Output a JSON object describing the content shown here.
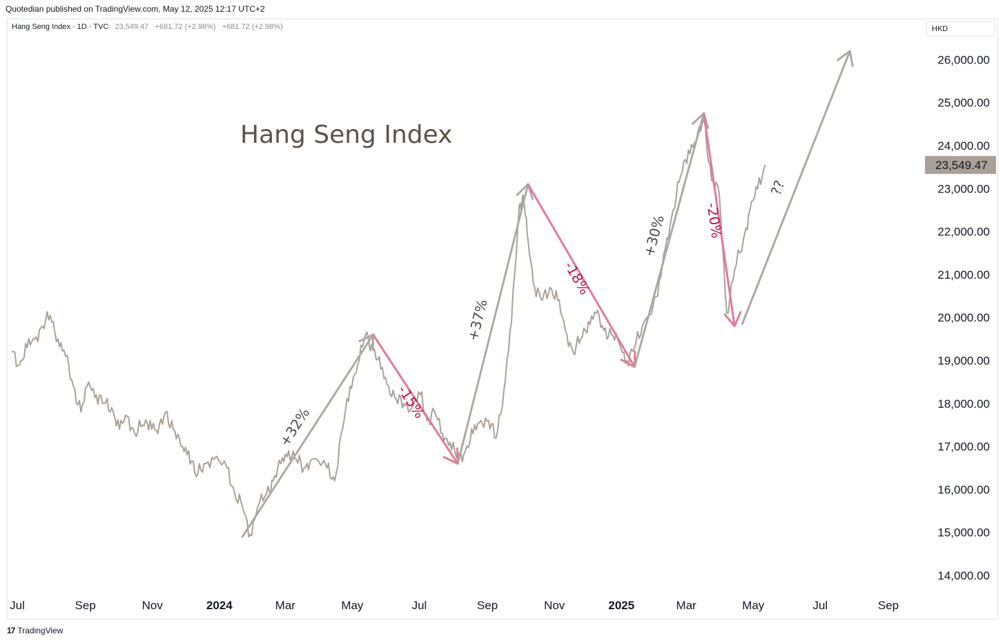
{
  "header": {
    "published": "Quotedian published on TradingView.com, May 12, 2025 12:17 UTC+2"
  },
  "legend": {
    "symbol": "Hang Seng Index · 1D · TVC",
    "last": "23,549.47",
    "change1": "+681.72 (+2.98%)",
    "change2": "+681.72 (+2.98%)"
  },
  "currency": "HKD",
  "footer": {
    "logo_mark": "17",
    "brand": "TradingView"
  },
  "colors": {
    "series": "#aaa097",
    "up_arrow": "#aea8a3",
    "down_arrow": "#e07a9a",
    "down_text": "#c0134a",
    "price_label_bg": "#aaa097"
  },
  "chart_data": {
    "type": "line",
    "title": "Hang Seng Index",
    "ylim": [
      13500,
      26800
    ],
    "y_ticks": [
      14000,
      15000,
      16000,
      17000,
      18000,
      19000,
      20000,
      21000,
      22000,
      23000,
      24000,
      25000,
      26000
    ],
    "y_tick_labels": [
      "14,000.00",
      "15,000.00",
      "16,000.00",
      "17,000.00",
      "18,000.00",
      "19,000.00",
      "20,000.00",
      "21,000.00",
      "22,000.00",
      "23,000.00",
      "24,000.00",
      "25,000.00",
      "26,000.00"
    ],
    "last_price_label": "23,549.47",
    "last_price": 23549.47,
    "x_ticks": [
      {
        "label": "Jul",
        "date": "2023-07-01",
        "bold": false
      },
      {
        "label": "Sep",
        "date": "2023-09-01",
        "bold": false
      },
      {
        "label": "Nov",
        "date": "2023-11-01",
        "bold": false
      },
      {
        "label": "2024",
        "date": "2024-01-01",
        "bold": true
      },
      {
        "label": "Mar",
        "date": "2024-03-01",
        "bold": false
      },
      {
        "label": "May",
        "date": "2024-05-01",
        "bold": false
      },
      {
        "label": "Jul",
        "date": "2024-07-01",
        "bold": false
      },
      {
        "label": "Sep",
        "date": "2024-09-01",
        "bold": false
      },
      {
        "label": "Nov",
        "date": "2024-11-01",
        "bold": false
      },
      {
        "label": "2025",
        "date": "2025-01-01",
        "bold": true
      },
      {
        "label": "Mar",
        "date": "2025-03-01",
        "bold": false
      },
      {
        "label": "May",
        "date": "2025-05-01",
        "bold": false
      },
      {
        "label": "Jul",
        "date": "2025-07-01",
        "bold": false
      },
      {
        "label": "Sep",
        "date": "2025-09-01",
        "bold": false
      }
    ],
    "series": [
      {
        "x": [
          "2023-06-26",
          "2023-07-03",
          "2023-07-10",
          "2023-07-17",
          "2023-07-24",
          "2023-07-31",
          "2023-08-07",
          "2023-08-14",
          "2023-08-21",
          "2023-08-28",
          "2023-09-04",
          "2023-09-11",
          "2023-09-18",
          "2023-09-25",
          "2023-10-02",
          "2023-10-09",
          "2023-10-16",
          "2023-10-23",
          "2023-10-30",
          "2023-11-06",
          "2023-11-13",
          "2023-11-20",
          "2023-11-27",
          "2023-12-04",
          "2023-12-11",
          "2023-12-18",
          "2023-12-27",
          "2024-01-08",
          "2024-01-15",
          "2024-01-22",
          "2024-01-29",
          "2024-02-05",
          "2024-02-13",
          "2024-02-19",
          "2024-02-26",
          "2024-03-04",
          "2024-03-11",
          "2024-03-18",
          "2024-03-25",
          "2024-04-08",
          "2024-04-15",
          "2024-04-22",
          "2024-04-29",
          "2024-05-06",
          "2024-05-13",
          "2024-05-20",
          "2024-05-27",
          "2024-06-03",
          "2024-06-10",
          "2024-06-17",
          "2024-06-24",
          "2024-07-02",
          "2024-07-08",
          "2024-07-15",
          "2024-07-22",
          "2024-07-29",
          "2024-08-05",
          "2024-08-12",
          "2024-08-19",
          "2024-08-26",
          "2024-09-02",
          "2024-09-09",
          "2024-09-16",
          "2024-09-23",
          "2024-09-30",
          "2024-10-04",
          "2024-10-08",
          "2024-10-14",
          "2024-10-21",
          "2024-10-28",
          "2024-11-04",
          "2024-11-11",
          "2024-11-18",
          "2024-11-25",
          "2024-12-02",
          "2024-12-09",
          "2024-12-16",
          "2024-12-23",
          "2024-12-30",
          "2025-01-06",
          "2025-01-13",
          "2025-01-20",
          "2025-02-03",
          "2025-02-10",
          "2025-02-17",
          "2025-02-24",
          "2025-03-03",
          "2025-03-10",
          "2025-03-17",
          "2025-03-24",
          "2025-03-31",
          "2025-04-07",
          "2025-04-14",
          "2025-04-22",
          "2025-04-28",
          "2025-05-05",
          "2025-05-12"
        ],
        "values": [
          19200,
          18900,
          19300,
          19500,
          19800,
          20050,
          19500,
          19100,
          18400,
          17800,
          18500,
          18200,
          18000,
          17900,
          17400,
          17700,
          17300,
          17500,
          17600,
          17300,
          17800,
          17400,
          17000,
          16900,
          16300,
          16600,
          16700,
          16500,
          15900,
          15600,
          14950,
          15600,
          15900,
          16200,
          16600,
          16900,
          16700,
          16500,
          16700,
          16500,
          16200,
          17400,
          18400,
          18900,
          19600,
          19300,
          18800,
          18400,
          18100,
          18000,
          17900,
          18200,
          17600,
          17800,
          17300,
          17100,
          16700,
          16900,
          17300,
          17600,
          17600,
          17200,
          18300,
          19900,
          22600,
          22750,
          21800,
          20700,
          20400,
          20700,
          20400,
          19700,
          19200,
          19500,
          19900,
          20100,
          19700,
          19600,
          19400,
          19000,
          19300,
          19800,
          20500,
          21600,
          22500,
          23300,
          23900,
          24100,
          24600,
          23200,
          22900,
          20100,
          21100,
          21800,
          22500,
          23000,
          23549.47
        ],
        "label": "Hang Seng Index"
      }
    ],
    "annotations": [
      {
        "kind": "up",
        "text": "+32%",
        "from": {
          "x": "2024-01-22",
          "y": 14900
        },
        "to": {
          "x": "2024-05-20",
          "y": 19600
        }
      },
      {
        "kind": "down",
        "text": "-15%",
        "from": {
          "x": "2024-05-20",
          "y": 19600
        },
        "to": {
          "x": "2024-08-05",
          "y": 16600
        }
      },
      {
        "kind": "up",
        "text": "+37%",
        "from": {
          "x": "2024-08-05",
          "y": 16600
        },
        "to": {
          "x": "2024-10-08",
          "y": 23100
        }
      },
      {
        "kind": "down",
        "text": "-18%",
        "from": {
          "x": "2024-10-08",
          "y": 23100
        },
        "to": {
          "x": "2025-01-13",
          "y": 18850
        }
      },
      {
        "kind": "up",
        "text": "+30%",
        "from": {
          "x": "2025-01-13",
          "y": 18850
        },
        "to": {
          "x": "2025-03-17",
          "y": 24750
        }
      },
      {
        "kind": "down",
        "text": "-20%",
        "from": {
          "x": "2025-03-17",
          "y": 24750
        },
        "to": {
          "x": "2025-04-14",
          "y": 19800
        }
      },
      {
        "kind": "up",
        "text": "??",
        "from": {
          "x": "2025-04-21",
          "y": 19850
        },
        "to": {
          "x": "2025-07-28",
          "y": 26200
        }
      }
    ]
  }
}
